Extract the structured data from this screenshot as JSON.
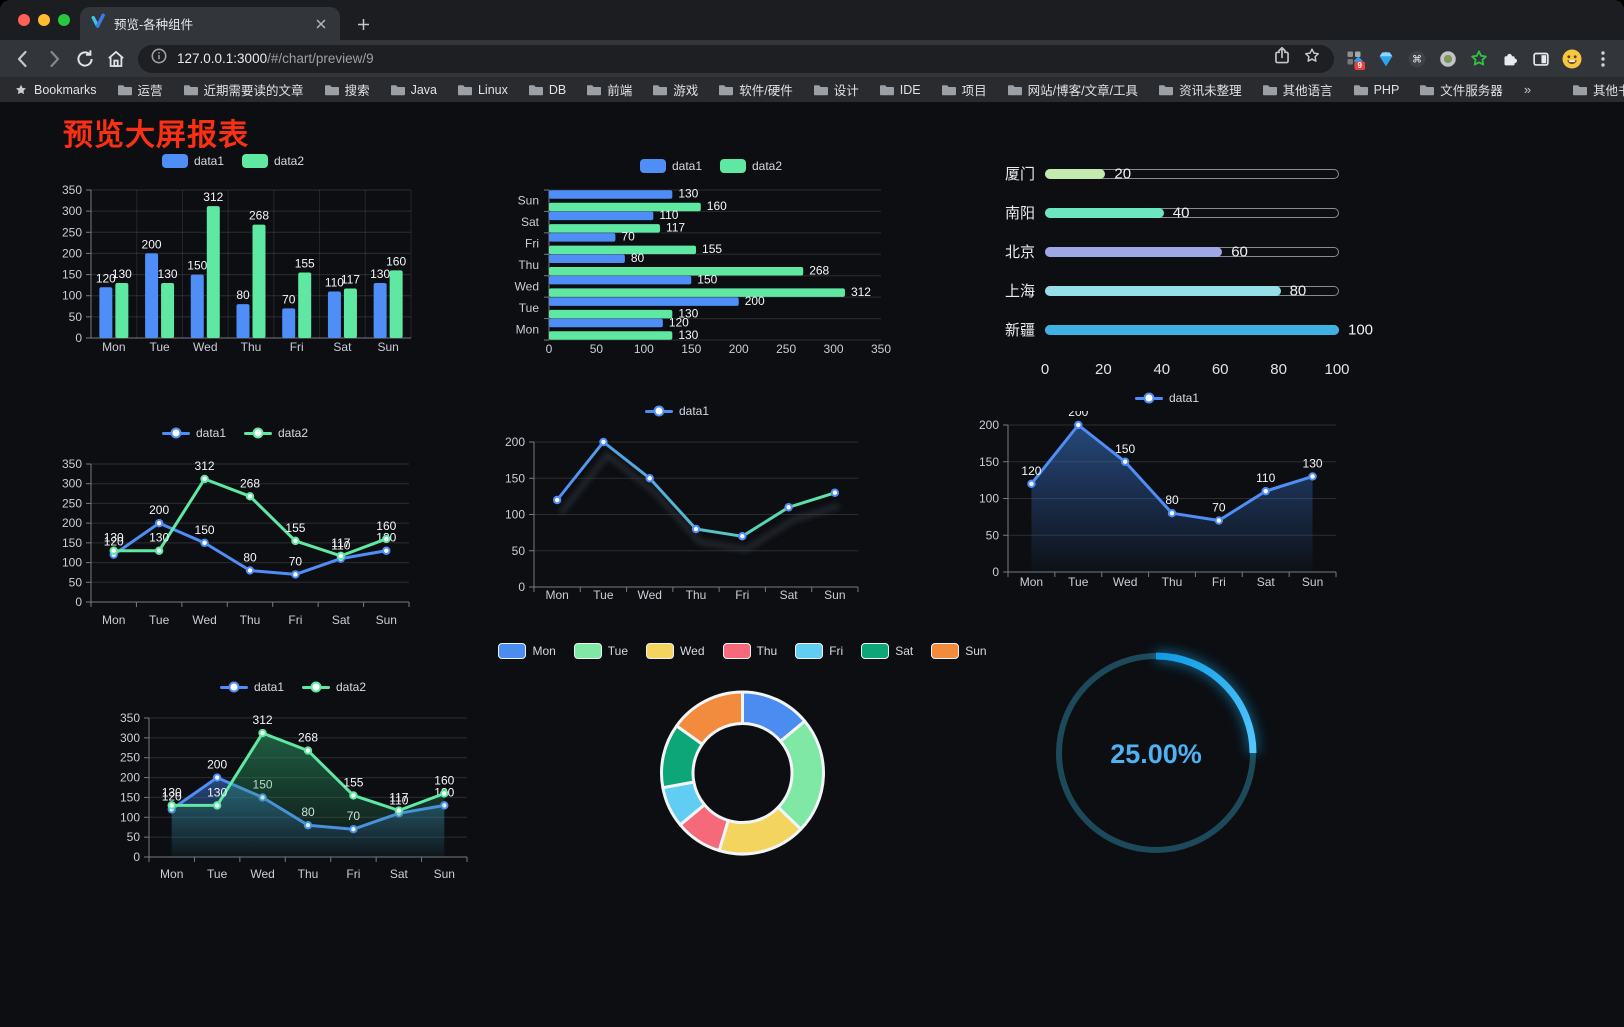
{
  "browser": {
    "tab": {
      "title": "预览-各种组件"
    },
    "url": {
      "host": "127.0.0.1:3000",
      "path": "/#/chart/preview/9"
    },
    "bookmarks_label": "Bookmarks",
    "bookmarks": [
      "运营",
      "近期需要读的文章",
      "搜索",
      "Java",
      "Linux",
      "DB",
      "前端",
      "游戏",
      "软件/硬件",
      "设计",
      "IDE",
      "项目",
      "网站/博客/文章/工具",
      "资讯未整理",
      "其他语言",
      "PHP",
      "文件服务器"
    ],
    "overflow_label": "»",
    "other_bookmarks": "其他书签",
    "ext_badge": "9"
  },
  "page": {
    "title": "预览大屏报表",
    "title_color": "#fb3012"
  },
  "colors": {
    "data1": "#4f8ef7",
    "data2": "#5fe8a2"
  },
  "chart_data": [
    {
      "id": "bar-vertical",
      "type": "bar",
      "categories": [
        "Mon",
        "Tue",
        "Wed",
        "Thu",
        "Fri",
        "Sat",
        "Sun"
      ],
      "series": [
        {
          "name": "data1",
          "color": "#4f8ef7",
          "values": [
            120,
            200,
            150,
            80,
            70,
            110,
            130
          ]
        },
        {
          "name": "data2",
          "color": "#5fe8a2",
          "values": [
            130,
            130,
            312,
            268,
            155,
            117,
            160
          ]
        }
      ],
      "ylim": [
        0,
        350
      ],
      "ytick": 50
    },
    {
      "id": "bar-horizontal",
      "type": "bar-horizontal",
      "categories": [
        "Sun",
        "Sat",
        "Fri",
        "Thu",
        "Wed",
        "Tue",
        "Mon"
      ],
      "series": [
        {
          "name": "data1",
          "color": "#4f8ef7",
          "values": [
            130,
            110,
            70,
            80,
            150,
            200,
            120
          ]
        },
        {
          "name": "data2",
          "color": "#5fe8a2",
          "values": [
            160,
            117,
            155,
            268,
            312,
            130,
            130
          ]
        }
      ],
      "xlim": [
        0,
        350
      ],
      "xtick": 50
    },
    {
      "id": "progress-list",
      "type": "progress",
      "max": 100,
      "axis_ticks": [
        0,
        20,
        40,
        60,
        80,
        100
      ],
      "items": [
        {
          "label": "厦门",
          "value": 20,
          "color": "#c4ebad"
        },
        {
          "label": "南阳",
          "value": 40,
          "color": "#6be6c1"
        },
        {
          "label": "北京",
          "value": 60,
          "color": "#a0a7e6"
        },
        {
          "label": "上海",
          "value": 80,
          "color": "#96dee8"
        },
        {
          "label": "新疆",
          "value": 100,
          "color": "#3fb1e3"
        }
      ]
    },
    {
      "id": "line-two-series",
      "type": "line",
      "categories": [
        "Mon",
        "Tue",
        "Wed",
        "Thu",
        "Fri",
        "Sat",
        "Sun"
      ],
      "series": [
        {
          "name": "data1",
          "color": "#4f8ef7",
          "values": [
            120,
            200,
            150,
            80,
            70,
            110,
            130
          ]
        },
        {
          "name": "data2",
          "color": "#5fe8a2",
          "values": [
            130,
            130,
            312,
            268,
            155,
            117,
            160
          ]
        }
      ],
      "ylim": [
        0,
        350
      ],
      "ytick": 50,
      "show_labels": true
    },
    {
      "id": "line-gradient",
      "type": "line",
      "categories": [
        "Mon",
        "Tue",
        "Wed",
        "Thu",
        "Fri",
        "Sat",
        "Sun"
      ],
      "series": [
        {
          "name": "data1",
          "color": "#4f8ef7",
          "color_end": "#5fe8a2",
          "marker_color": "#4f8ef7",
          "values": [
            120,
            200,
            150,
            80,
            70,
            110,
            130
          ]
        }
      ],
      "ylim": [
        0,
        200
      ],
      "ytick": 50,
      "show_labels": false,
      "shadow": true
    },
    {
      "id": "area-single",
      "type": "line",
      "area": true,
      "categories": [
        "Mon",
        "Tue",
        "Wed",
        "Thu",
        "Fri",
        "Sat",
        "Sun"
      ],
      "series": [
        {
          "name": "data1",
          "color": "#4f8ef7",
          "area_color": "#3a77d0",
          "values": [
            120,
            200,
            150,
            80,
            70,
            110,
            130
          ]
        }
      ],
      "ylim": [
        0,
        200
      ],
      "ytick": 50,
      "show_labels": true
    },
    {
      "id": "line-area-two",
      "type": "line",
      "area": true,
      "categories": [
        "Mon",
        "Tue",
        "Wed",
        "Thu",
        "Fri",
        "Sat",
        "Sun"
      ],
      "series": [
        {
          "name": "data1",
          "color": "#4f8ef7",
          "area_color": "#3a77d0",
          "values": [
            120,
            200,
            150,
            80,
            70,
            110,
            130
          ]
        },
        {
          "name": "data2",
          "color": "#5fe8a2",
          "area_color": "#2e9e68",
          "values": [
            130,
            130,
            312,
            268,
            155,
            117,
            160
          ]
        }
      ],
      "ylim": [
        0,
        350
      ],
      "ytick": 50,
      "show_labels": true
    },
    {
      "id": "donut",
      "type": "pie",
      "items": [
        {
          "label": "Mon",
          "value": 120,
          "color": "#4a8cf0"
        },
        {
          "label": "Tue",
          "value": 200,
          "color": "#7fe8a4"
        },
        {
          "label": "Wed",
          "value": 150,
          "color": "#f2d45f"
        },
        {
          "label": "Thu",
          "value": 80,
          "color": "#f5697b"
        },
        {
          "label": "Fri",
          "value": 70,
          "color": "#62cdf2"
        },
        {
          "label": "Sat",
          "value": 110,
          "color": "#0ca678"
        },
        {
          "label": "Sun",
          "value": 130,
          "color": "#f28b3d"
        }
      ]
    },
    {
      "id": "gauge",
      "type": "gauge",
      "value": 25,
      "label": "25.00%",
      "color": "#16a8f0",
      "track_color": "#1d4a5a"
    }
  ]
}
